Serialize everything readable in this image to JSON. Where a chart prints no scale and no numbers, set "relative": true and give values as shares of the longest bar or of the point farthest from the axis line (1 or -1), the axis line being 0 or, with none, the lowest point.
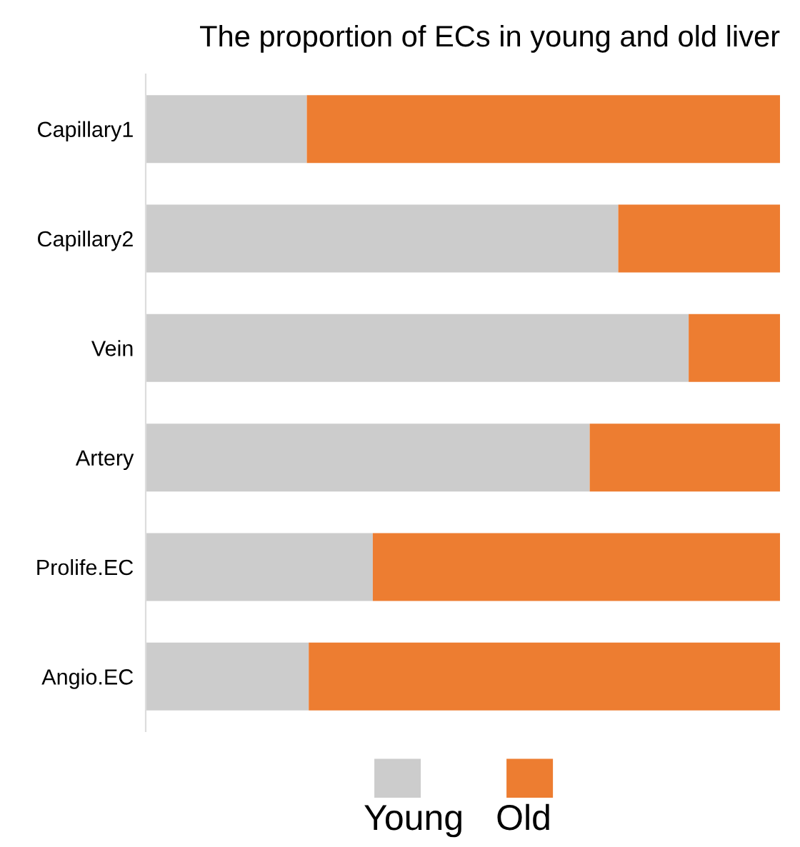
{
  "chart_data": {
    "type": "bar",
    "orientation": "horizontal",
    "stacked": true,
    "relative": true,
    "title": "The proportion of ECs in young and old liver",
    "categories": [
      "Capillary1",
      "Capillary2",
      "Vein",
      "Artery",
      "Prolife.EC",
      "Angio.EC"
    ],
    "series": [
      {
        "name": "Young",
        "color": "#cccccc",
        "values": [
          0.254,
          0.745,
          0.856,
          0.7,
          0.358,
          0.257
        ]
      },
      {
        "name": "Old",
        "color": "#ed7d31",
        "values": [
          0.746,
          0.255,
          0.144,
          0.3,
          0.642,
          0.743
        ]
      }
    ],
    "legend": "bottom",
    "grid": false
  }
}
